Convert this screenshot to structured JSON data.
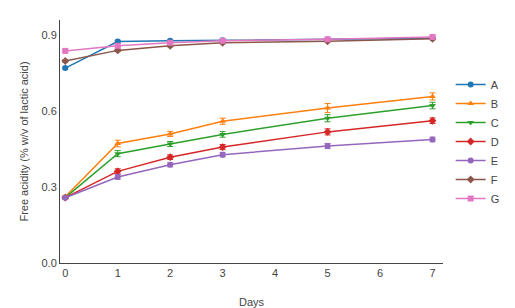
{
  "chart_data": {
    "type": "line",
    "x": [
      0,
      1,
      2,
      3,
      5,
      7
    ],
    "series": [
      {
        "name": "A",
        "marker": "circle",
        "values": [
          0.77,
          0.875,
          0.878,
          0.88,
          0.883,
          0.888
        ],
        "yerr": [
          0.004,
          0.005,
          0.004,
          0.004,
          0.004,
          0.004
        ]
      },
      {
        "name": "B",
        "marker": "triangle-up",
        "values": [
          0.262,
          0.472,
          0.51,
          0.56,
          0.612,
          0.658
        ],
        "yerr": [
          0.005,
          0.013,
          0.01,
          0.012,
          0.018,
          0.014
        ]
      },
      {
        "name": "C",
        "marker": "triangle-down",
        "values": [
          0.258,
          0.432,
          0.47,
          0.508,
          0.572,
          0.622
        ],
        "yerr": [
          0.005,
          0.012,
          0.01,
          0.011,
          0.014,
          0.013
        ]
      },
      {
        "name": "D",
        "marker": "diamond",
        "values": [
          0.258,
          0.362,
          0.418,
          0.458,
          0.518,
          0.562
        ],
        "yerr": [
          0.004,
          0.01,
          0.009,
          0.01,
          0.012,
          0.011
        ]
      },
      {
        "name": "E",
        "marker": "circle",
        "values": [
          0.258,
          0.34,
          0.388,
          0.428,
          0.462,
          0.488
        ],
        "yerr": [
          0.004,
          0.009,
          0.008,
          0.009,
          0.01,
          0.009
        ]
      },
      {
        "name": "F",
        "marker": "diamond",
        "values": [
          0.798,
          0.84,
          0.858,
          0.87,
          0.876,
          0.886
        ],
        "yerr": [
          0.004,
          0.005,
          0.004,
          0.004,
          0.004,
          0.004
        ]
      },
      {
        "name": "G",
        "marker": "square",
        "values": [
          0.838,
          0.858,
          0.87,
          0.878,
          0.884,
          0.893
        ],
        "yerr": [
          0.004,
          0.004,
          0.004,
          0.004,
          0.004,
          0.004
        ]
      }
    ],
    "xlabel": "Days",
    "ylabel": "Free acidity (% w/v of lactic acid)",
    "xlim": [
      -0.1,
      7.2
    ],
    "ylim": [
      0.0,
      0.96
    ],
    "xticks": [
      0,
      1,
      2,
      3,
      4,
      5,
      6,
      7
    ],
    "yticks": [
      {
        "value": 0.0,
        "label": "0.0"
      },
      0.3,
      0.6,
      0.9
    ],
    "grid": false,
    "legend": "right"
  }
}
